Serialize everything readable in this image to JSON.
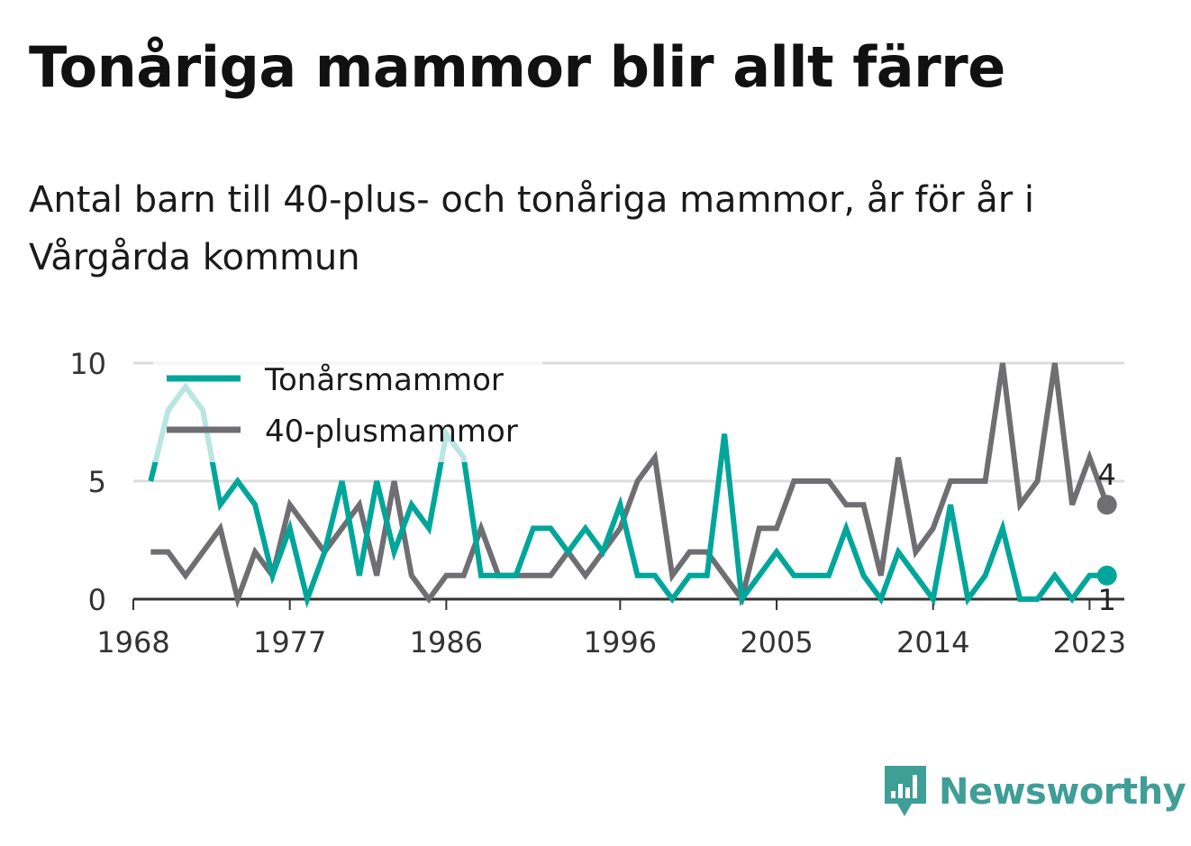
{
  "title": "Tonåriga mammor blir allt färre",
  "subtitle": "Antal barn till 40-plus- och tonåriga mammor, år för år i Vårgårda kommun",
  "brand": {
    "name": "Newsworthy",
    "color": "#3f9e95",
    "icon": "newsworthy-logo-icon"
  },
  "chart_data": {
    "type": "line",
    "x_ticks": [
      1968,
      1977,
      1986,
      1996,
      2005,
      2014,
      2023
    ],
    "y_ticks": [
      0,
      5,
      10
    ],
    "ylim": [
      0,
      10
    ],
    "xlim": [
      1968,
      2025
    ],
    "grid": true,
    "legend_position": "top-left",
    "x": [
      1969,
      1970,
      1971,
      1972,
      1973,
      1974,
      1975,
      1976,
      1977,
      1978,
      1979,
      1980,
      1981,
      1982,
      1983,
      1984,
      1985,
      1986,
      1987,
      1988,
      1989,
      1990,
      1991,
      1992,
      1993,
      1994,
      1995,
      1996,
      1997,
      1998,
      1999,
      2000,
      2001,
      2002,
      2003,
      2004,
      2005,
      2006,
      2007,
      2008,
      2009,
      2010,
      2011,
      2012,
      2013,
      2014,
      2015,
      2016,
      2017,
      2018,
      2019,
      2020,
      2021,
      2022,
      2023,
      2024
    ],
    "series": [
      {
        "name": "Tonårsmammor",
        "color": "#00a69a",
        "values": [
          5,
          8,
          9,
          8,
          4,
          5,
          4,
          1,
          3,
          0,
          2,
          5,
          1,
          5,
          2,
          4,
          3,
          7,
          6,
          1,
          1,
          1,
          3,
          3,
          2,
          3,
          2,
          4,
          1,
          1,
          0,
          1,
          1,
          7,
          0,
          1,
          2,
          1,
          1,
          1,
          3,
          1,
          0,
          2,
          1,
          0,
          4,
          0,
          1,
          3,
          0,
          0,
          1,
          0,
          1,
          1
        ],
        "end_label": "1"
      },
      {
        "name": "40-plusmammor",
        "color": "#6e6e73",
        "values": [
          2,
          2,
          1,
          2,
          3,
          0,
          2,
          1,
          4,
          3,
          2,
          3,
          4,
          1,
          5,
          1,
          0,
          1,
          1,
          3,
          1,
          1,
          1,
          1,
          2,
          1,
          2,
          3,
          5,
          6,
          1,
          2,
          2,
          1,
          0,
          3,
          3,
          5,
          5,
          5,
          4,
          4,
          1,
          6,
          2,
          3,
          5,
          5,
          5,
          10,
          4,
          5,
          10,
          4,
          6,
          4
        ],
        "end_label": "4"
      }
    ]
  }
}
